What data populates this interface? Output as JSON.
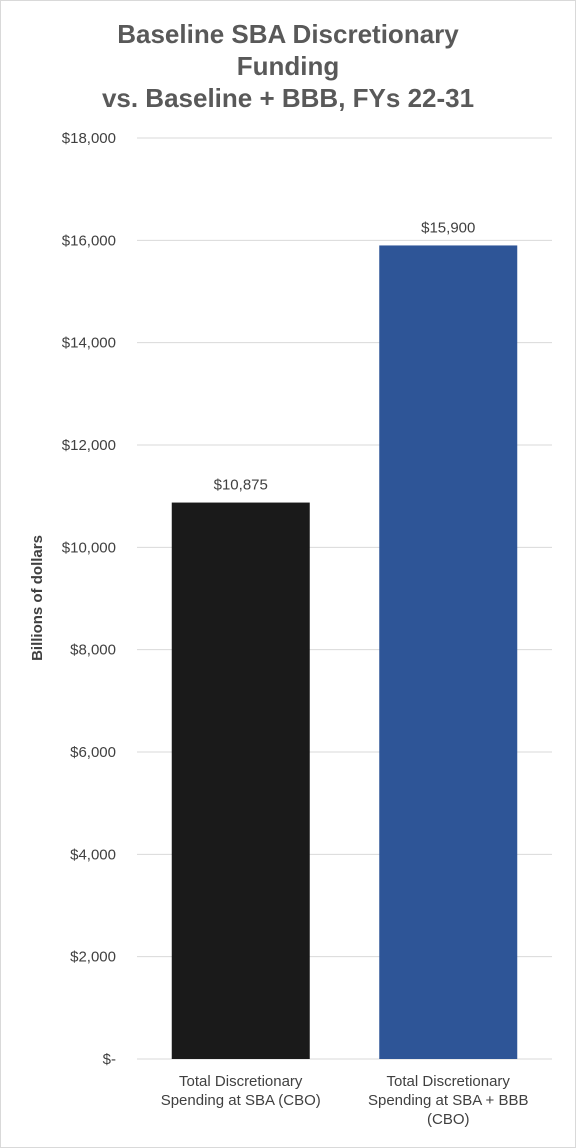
{
  "chart_data": {
    "type": "bar",
    "title_lines": [
      "Baseline SBA Discretionary",
      "Funding",
      "vs. Baseline + BBB, FYs 22-31"
    ],
    "ylabel": "Billions of dollars",
    "xlabel": "",
    "ylim": [
      0,
      18000
    ],
    "yticks": [
      0,
      2000,
      4000,
      6000,
      8000,
      10000,
      12000,
      14000,
      16000,
      18000
    ],
    "ytick_labels": [
      "$-",
      "$2,000",
      "$4,000",
      "$6,000",
      "$8,000",
      "$10,000",
      "$12,000",
      "$14,000",
      "$16,000",
      "$18,000"
    ],
    "grid": true,
    "categories": [
      [
        "Total Discretionary",
        "Spending at SBA (CBO)"
      ],
      [
        "Total Discretionary",
        "Spending at SBA + BBB",
        "(CBO)"
      ]
    ],
    "values": [
      10875,
      15900
    ],
    "data_labels": [
      "$10,875",
      "$15,900"
    ],
    "colors": [
      "#1a1a1a",
      "#2e5597"
    ]
  }
}
